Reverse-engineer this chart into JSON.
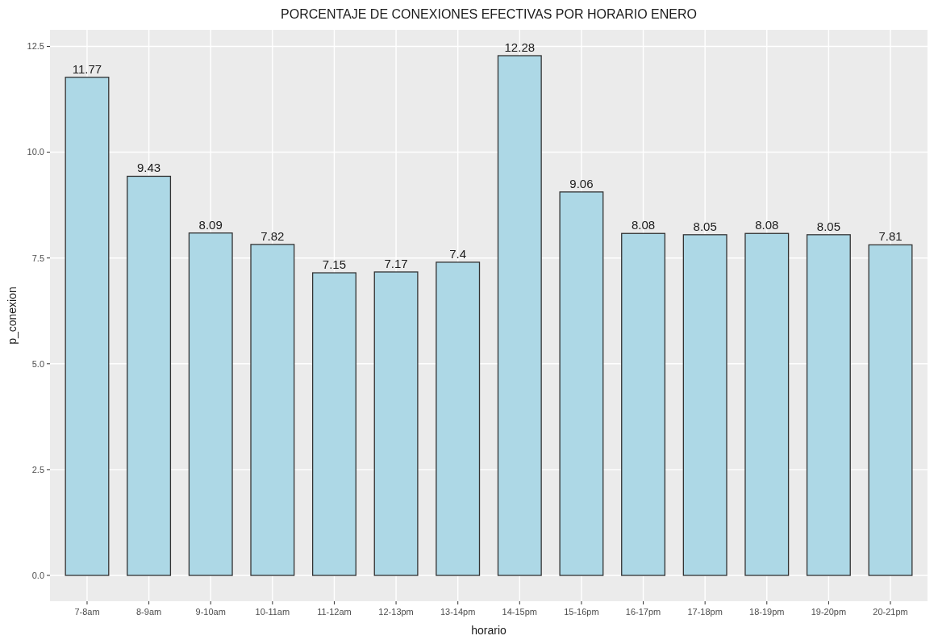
{
  "chart_data": {
    "type": "bar",
    "title": "PORCENTAJE DE CONEXIONES EFECTIVAS POR HORARIO ENERO",
    "xlabel": "horario",
    "ylabel": "p_conexion",
    "categories": [
      "7-8am",
      "8-9am",
      "9-10am",
      "10-11am",
      "11-12am",
      "12-13pm",
      "13-14pm",
      "14-15pm",
      "15-16pm",
      "16-17pm",
      "17-18pm",
      "18-19pm",
      "19-20pm",
      "20-21pm"
    ],
    "values": [
      11.77,
      9.43,
      8.09,
      7.82,
      7.15,
      7.17,
      7.4,
      12.28,
      9.06,
      8.08,
      8.05,
      8.08,
      8.05,
      7.81
    ],
    "color": "#add8e6",
    "ylim": [
      -0.61,
      12.89
    ],
    "yticks": [
      {
        "value": 0,
        "label": "0.0"
      },
      {
        "value": 2.5,
        "label": "2.5"
      },
      {
        "value": 5,
        "label": "5.0"
      },
      {
        "value": 7.5,
        "label": "7.5"
      },
      {
        "value": 10,
        "label": "10.0"
      },
      {
        "value": 12.5,
        "label": "12.5"
      }
    ],
    "grid": true,
    "data_labels": true
  }
}
